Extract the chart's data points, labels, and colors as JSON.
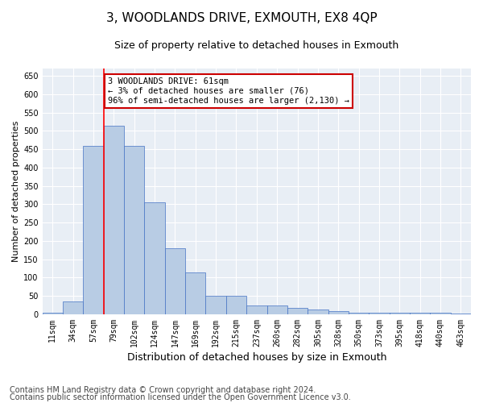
{
  "title": "3, WOODLANDS DRIVE, EXMOUTH, EX8 4QP",
  "subtitle": "Size of property relative to detached houses in Exmouth",
  "xlabel": "Distribution of detached houses by size in Exmouth",
  "ylabel": "Number of detached properties",
  "categories": [
    "11sqm",
    "34sqm",
    "57sqm",
    "79sqm",
    "102sqm",
    "124sqm",
    "147sqm",
    "169sqm",
    "192sqm",
    "215sqm",
    "237sqm",
    "260sqm",
    "282sqm",
    "305sqm",
    "328sqm",
    "350sqm",
    "373sqm",
    "395sqm",
    "418sqm",
    "440sqm",
    "463sqm"
  ],
  "values": [
    5,
    35,
    460,
    515,
    460,
    305,
    180,
    115,
    50,
    50,
    25,
    25,
    18,
    12,
    8,
    5,
    5,
    5,
    5,
    5,
    3
  ],
  "bar_color": "#b8cce4",
  "bar_edge_color": "#4472c4",
  "ylim": [
    0,
    670
  ],
  "yticks": [
    0,
    50,
    100,
    150,
    200,
    250,
    300,
    350,
    400,
    450,
    500,
    550,
    600,
    650
  ],
  "red_line_x": 2.5,
  "annotation_text": "3 WOODLANDS DRIVE: 61sqm\n← 3% of detached houses are smaller (76)\n96% of semi-detached houses are larger (2,130) →",
  "annotation_box_color": "#ffffff",
  "annotation_box_edge": "#cc0000",
  "footer_line1": "Contains HM Land Registry data © Crown copyright and database right 2024.",
  "footer_line2": "Contains public sector information licensed under the Open Government Licence v3.0.",
  "background_color": "#ffffff",
  "plot_background": "#e8eef5",
  "grid_color": "#ffffff",
  "title_fontsize": 11,
  "subtitle_fontsize": 9,
  "ylabel_fontsize": 8,
  "xlabel_fontsize": 9,
  "tick_fontsize": 7,
  "footer_fontsize": 7
}
